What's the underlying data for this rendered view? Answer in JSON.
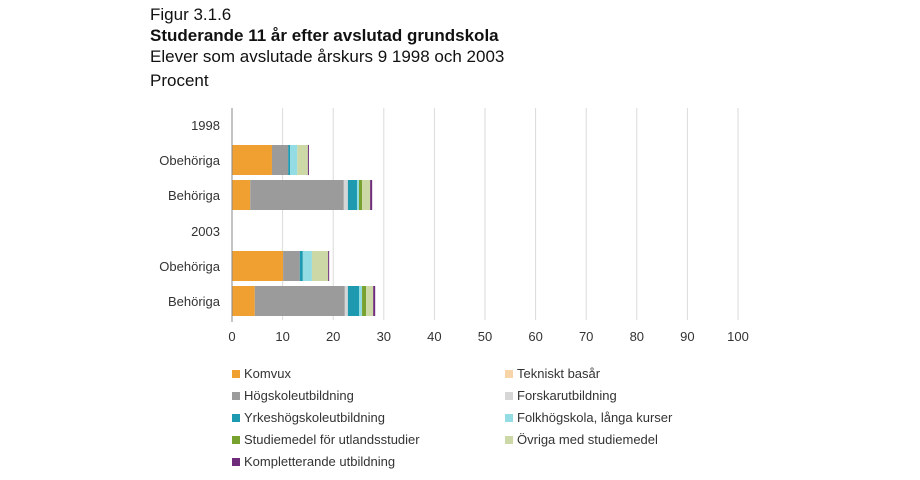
{
  "header": {
    "figure_label": "Figur 3.1.6",
    "title": "Studerande 11 år efter avslutad grundskola",
    "subtitle": "Elever som avslutade årskurs 9 1998 och 2003",
    "unit": "Procent"
  },
  "chart_data": {
    "type": "bar",
    "orientation": "horizontal",
    "stacked": true,
    "title": "Studerande 11 år efter avslutad grundskola",
    "subtitle": "Elever som avslutade årskurs 9 1998 och 2003",
    "xlabel": "",
    "ylabel": "Procent",
    "xlim": [
      0,
      100
    ],
    "x_ticks": [
      "0",
      "10",
      "20",
      "30",
      "40",
      "50",
      "60",
      "70",
      "80",
      "90",
      "100"
    ],
    "grid": true,
    "legend_position": "bottom",
    "rows": [
      {
        "label": "1998",
        "is_group_header": true
      },
      {
        "label": "Obehöriga",
        "group": "1998"
      },
      {
        "label": "Behöriga",
        "group": "1998"
      },
      {
        "label": "2003",
        "is_group_header": true
      },
      {
        "label": "Obehöriga",
        "group": "2003"
      },
      {
        "label": "Behöriga",
        "group": "2003"
      }
    ],
    "categories": [
      "1998 Obehöriga",
      "1998 Behöriga",
      "2003 Obehöriga",
      "2003 Behöriga"
    ],
    "series": [
      {
        "name": "Komvux",
        "color": "#F0A030",
        "values": [
          7.9,
          3.6,
          10.1,
          4.5
        ]
      },
      {
        "name": "Tekniskt basår",
        "color": "#F8D5A8",
        "values": [
          0.0,
          0.0,
          0.0,
          0.0
        ]
      },
      {
        "name": "Högskoleutbildning",
        "color": "#9B9B9B",
        "values": [
          3.2,
          18.5,
          3.3,
          17.8
        ]
      },
      {
        "name": "Forskarutbildning",
        "color": "#D6D6D6",
        "values": [
          0.0,
          0.8,
          0.0,
          0.6
        ]
      },
      {
        "name": "Yrkeshögskoleutbildning",
        "color": "#1E9AB0",
        "values": [
          0.4,
          1.8,
          0.6,
          2.2
        ]
      },
      {
        "name": "Folkhögskola, långa kurser",
        "color": "#94DCE4",
        "values": [
          1.4,
          0.4,
          1.8,
          0.6
        ]
      },
      {
        "name": "Studiemedel för utlandsstudier",
        "color": "#78A22F",
        "values": [
          0.0,
          0.6,
          0.0,
          0.8
        ]
      },
      {
        "name": "Övriga med studiemedel",
        "color": "#CCD9A6",
        "values": [
          2.1,
          1.6,
          3.2,
          1.4
        ]
      },
      {
        "name": "Kompletterande utbildning",
        "color": "#6F2C7A",
        "values": [
          0.2,
          0.4,
          0.2,
          0.4
        ]
      }
    ]
  },
  "legend": {
    "items": [
      {
        "label": "Komvux",
        "color": "#F0A030"
      },
      {
        "label": "Tekniskt basår",
        "color": "#F8D5A8"
      },
      {
        "label": "Högskoleutbildning",
        "color": "#9B9B9B"
      },
      {
        "label": "Forskarutbildning",
        "color": "#D6D6D6"
      },
      {
        "label": "Yrkeshögskoleutbildning",
        "color": "#1E9AB0"
      },
      {
        "label": "Folkhögskola, långa kurser",
        "color": "#94DCE4"
      },
      {
        "label": "Studiemedel för utlandsstudier",
        "color": "#78A22F"
      },
      {
        "label": "Övriga med studiemedel",
        "color": "#CCD9A6"
      },
      {
        "label": "Kompletterande utbildning",
        "color": "#6F2C7A"
      }
    ]
  }
}
